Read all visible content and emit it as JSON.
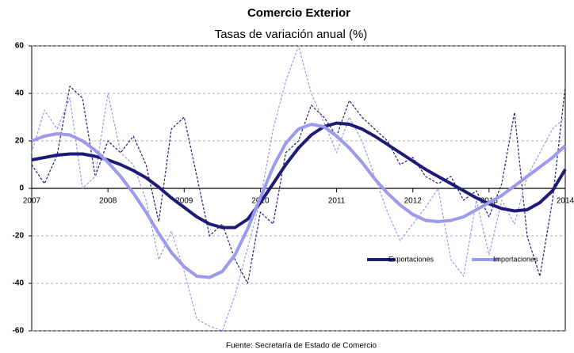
{
  "chart_data": {
    "type": "line",
    "title": "Comercio Exterior",
    "subtitle": "Tasas de variación anual (%)",
    "source": "Fuente: Secretaría de Estado de Comercio",
    "x": [
      2007,
      2007.167,
      2007.333,
      2007.5,
      2007.667,
      2007.833,
      2008,
      2008.167,
      2008.333,
      2008.5,
      2008.667,
      2008.833,
      2009,
      2009.167,
      2009.333,
      2009.5,
      2009.667,
      2009.833,
      2010,
      2010.167,
      2010.333,
      2010.5,
      2010.667,
      2010.833,
      2011,
      2011.167,
      2011.333,
      2011.5,
      2011.667,
      2011.833,
      2012,
      2012.167,
      2012.333,
      2012.5,
      2012.667,
      2012.833,
      2013,
      2013.167,
      2013.333,
      2013.5,
      2013.667,
      2013.833,
      2014
    ],
    "series": [
      {
        "name": "Exportaciones",
        "color": "#1c1c78",
        "values": [
          10,
          2,
          14,
          43,
          38,
          5,
          20,
          15,
          22,
          10,
          -14,
          25,
          30,
          5,
          -20,
          -15,
          -30,
          -40,
          -10,
          -15,
          15,
          20,
          35,
          30,
          22,
          37,
          30,
          25,
          20,
          10,
          13,
          5,
          2,
          5,
          -5,
          -1,
          -12,
          2,
          32,
          -20,
          -37,
          -5,
          43
        ],
        "trend": [
          12,
          13,
          14,
          14.5,
          14.5,
          13.5,
          12,
          10,
          7.5,
          4.5,
          0.5,
          -4,
          -8,
          -12,
          -15,
          -16.5,
          -16.5,
          -13,
          -6,
          2,
          10,
          17,
          22.5,
          26,
          27.5,
          27,
          25,
          22,
          18.5,
          15,
          11.5,
          8,
          5,
          2,
          -1,
          -4,
          -6.5,
          -8.5,
          -9.5,
          -9,
          -6,
          -1,
          8
        ]
      },
      {
        "name": "Importaciones",
        "color": "#9a9aee",
        "values": [
          15,
          33,
          25,
          38,
          0,
          5,
          40,
          15,
          10,
          -5,
          -30,
          -18,
          -35,
          -55,
          -58,
          -60,
          -45,
          -25,
          -5,
          25,
          45,
          60,
          40,
          28,
          15,
          30,
          20,
          5,
          -10,
          -22,
          -15,
          -8,
          0,
          -30,
          -37,
          -5,
          -28,
          -5,
          -15,
          5,
          15,
          25,
          30
        ],
        "trend": [
          20,
          22,
          23,
          22.5,
          20,
          16,
          11,
          5,
          -2,
          -10,
          -19,
          -27,
          -33,
          -37,
          -37.5,
          -35,
          -28,
          -17,
          -4,
          9,
          19,
          25,
          27,
          26,
          22,
          17,
          11,
          4,
          -2,
          -7,
          -11,
          -13.5,
          -14,
          -13.5,
          -12,
          -9,
          -6,
          -3,
          1,
          5,
          9,
          13,
          18
        ]
      }
    ],
    "xlim": [
      2007,
      2014
    ],
    "xticks": [
      2007,
      2008,
      2009,
      2010,
      2011,
      2012,
      2013,
      2014
    ],
    "ylim": [
      -60,
      60
    ],
    "yticks": [
      -60,
      -40,
      -20,
      0,
      20,
      40,
      60
    ],
    "grid": true
  }
}
